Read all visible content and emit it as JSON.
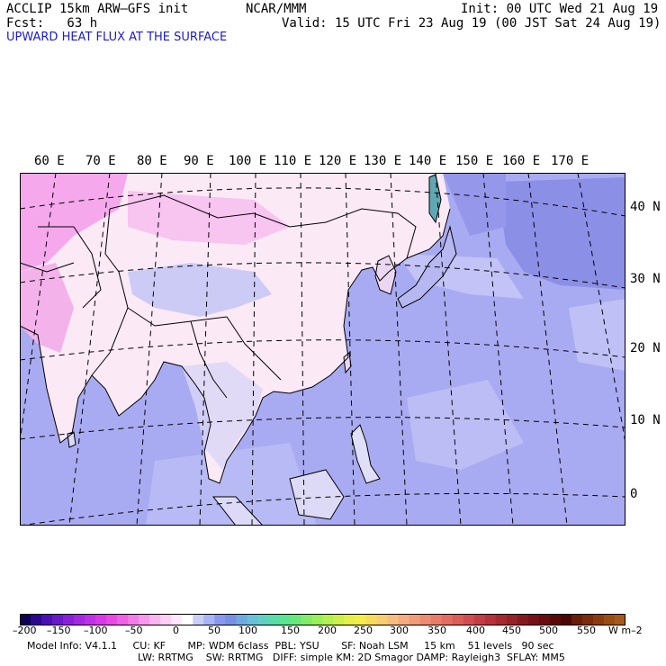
{
  "header": {
    "model_line": "ACCLIP 15km ARW–GFS init",
    "forecast_line": "Fcst:   63 h",
    "center": "NCAR/MMM",
    "init": "Init: 00 UTC Wed 21 Aug 19",
    "valid": "Valid: 15 UTC Fri 23 Aug 19 (00 JST Sat 24 Aug 19)",
    "subtitle": "UPWARD HEAT FLUX AT THE SURFACE"
  },
  "map": {
    "lon_labels": [
      "60 E",
      "70 E",
      "80 E",
      "90 E",
      "100 E",
      "110 E",
      "120 E",
      "130 E",
      "140 E",
      "150 E",
      "160 E",
      "170 E"
    ],
    "lat_labels": [
      "40 N",
      "30 N",
      "20 N",
      "10 N",
      "0"
    ],
    "colors": {
      "ocean": "#a9abf2",
      "ocean_dark": "#8c8fe6",
      "land": "#fbe9f6",
      "desert": "#f5a8ec",
      "coast": "#000000",
      "grid": "#000000"
    }
  },
  "colorbar": {
    "tick_labels": [
      "–200",
      "–150",
      "–100",
      "–50",
      "0",
      "50",
      "100",
      "150",
      "200",
      "250",
      "300",
      "350",
      "400",
      "450",
      "500",
      "550"
    ],
    "unit": "W m–2",
    "colors": [
      "#100058",
      "#2a0890",
      "#4a10b4",
      "#6a18cc",
      "#8a20dc",
      "#a628e4",
      "#c030e8",
      "#d838e8",
      "#e848e4",
      "#f060e4",
      "#f47ce8",
      "#f898ec",
      "#fab4f0",
      "#fcd0f4",
      "#fee8fa",
      "#ffffff",
      "#c8d0f8",
      "#a8b4f4",
      "#8898ec",
      "#7890e4",
      "#70a8e0",
      "#68c0d8",
      "#60d0c0",
      "#58dca8",
      "#58e490",
      "#68e878",
      "#80ec68",
      "#98f058",
      "#b4f050",
      "#ccf048",
      "#e4f048",
      "#f4ec48",
      "#f8dc58",
      "#f8cc70",
      "#f8bc80",
      "#f4ac80",
      "#f09c78",
      "#ec8c70",
      "#e87c68",
      "#e46c60",
      "#dc5c58",
      "#d04c50",
      "#c43c44",
      "#b8303c",
      "#a82830",
      "#982028",
      "#881820",
      "#781018",
      "#6a0c10",
      "#5a0808",
      "#4c0604",
      "#6a1c08",
      "#7a2c0c",
      "#8a3c10",
      "#9a4c14",
      "#a85818"
    ]
  },
  "model_info": {
    "line1": "Model Info: V4.1.1     CU: KF       MP: WDM 6class  PBL: YSU       SF: Noah LSM     15 km    51 levels   90 sec",
    "line2": "LW: RRTMG    SW: RRTMG   DIFF: simple KM: 2D Smagor DAMP: Rayleigh3  SFLAY: MM5"
  }
}
